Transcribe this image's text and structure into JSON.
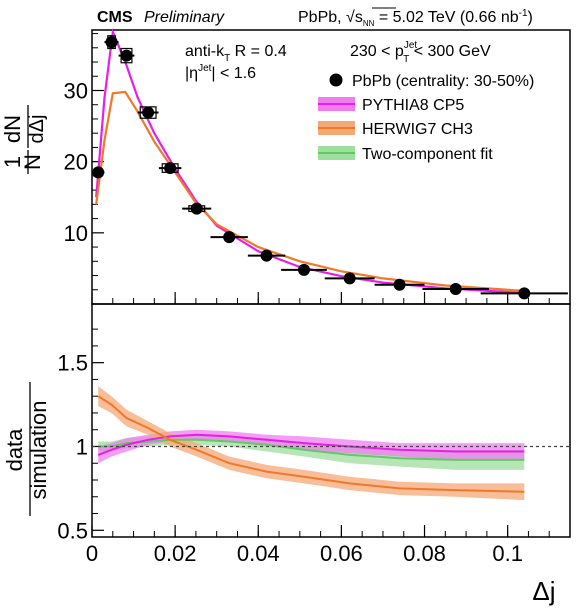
{
  "header": {
    "experiment": "CMS",
    "status": "Preliminary",
    "dataset_prefix": "PbPb, √",
    "sqrt_sub": "s",
    "sqrt_subsub": "NN",
    "dataset_suffix": " = 5.02 TeV (0.66 nb",
    "lumi_exp": "-1",
    "close": ")"
  },
  "annotations": {
    "jet_algo": "anti-k",
    "jet_algo_sub": "T",
    "jet_radius": " R = 0.4",
    "eta_pre": "|η",
    "eta_sup": "Jet",
    "eta_post": "| < 1.6",
    "pt_pre": "230 < p",
    "pt_sup": "Jet",
    "pt_sub": "T",
    "pt_post": " < 300 GeV"
  },
  "legend": {
    "data": "PbPb (centrality: 30-50%)",
    "pythia": "PYTHIA8 CP5",
    "herwig": "HERWIG7 CH3",
    "fit": "Two-component fit"
  },
  "colors": {
    "data": "#000000",
    "pythia": "#e61ee6",
    "pythia_band": "#f07cf0",
    "herwig": "#f07828",
    "herwig_band": "#f5a878",
    "fit": "#64c864",
    "fit_band": "#9ede9e"
  },
  "chart_data": [
    {
      "type": "line",
      "panel": "top",
      "ylabel_num": "1",
      "ylabel_den": "N",
      "ylabel_num2": "dN",
      "ylabel_den2": "dΔj",
      "xlim": [
        0,
        0.115
      ],
      "ylim": [
        0,
        38.5
      ],
      "yticks": [
        10,
        20,
        30
      ],
      "data_points": {
        "name": "PbPb (centrality: 30-50%)",
        "x": [
          0.0015,
          0.0047,
          0.0083,
          0.0135,
          0.0188,
          0.0252,
          0.033,
          0.042,
          0.051,
          0.062,
          0.074,
          0.0875,
          0.104
        ],
        "xerr": [
          0.0015,
          0.0017,
          0.0019,
          0.0025,
          0.0027,
          0.0035,
          0.0045,
          0.0045,
          0.0055,
          0.006,
          0.006,
          0.008,
          0.0105
        ],
        "y": [
          18.5,
          36.8,
          34.9,
          26.9,
          19.1,
          13.4,
          9.4,
          6.8,
          4.8,
          3.6,
          2.7,
          2.1,
          1.5
        ],
        "box_xw": [
          0.0,
          0.0009,
          0.0013,
          0.0019,
          0.0019,
          0.0019,
          0.0,
          0.0,
          0.0,
          0.0,
          0.0,
          0.0,
          0.0
        ],
        "box_yh": [
          0.0,
          0.9,
          1.0,
          0.8,
          0.6,
          0.4,
          0.0,
          0.0,
          0.0,
          0.0,
          0.0,
          0.0,
          0.0
        ]
      },
      "series": [
        {
          "name": "PYTHIA8 CP5",
          "x": [
            0.001,
            0.003,
            0.005,
            0.008,
            0.011,
            0.015,
            0.02,
            0.025,
            0.03,
            0.04,
            0.05,
            0.06,
            0.07,
            0.085,
            0.105
          ],
          "y": [
            15.0,
            29.0,
            38.2,
            34.0,
            29.0,
            24.0,
            19.0,
            14.5,
            11.0,
            7.4,
            5.2,
            3.9,
            3.0,
            2.2,
            1.5
          ]
        },
        {
          "name": "HERWIG7 CH3",
          "x": [
            0.001,
            0.003,
            0.005,
            0.008,
            0.011,
            0.015,
            0.02,
            0.025,
            0.03,
            0.04,
            0.05,
            0.06,
            0.07,
            0.085,
            0.105
          ],
          "y": [
            14.0,
            23.0,
            29.6,
            29.8,
            27.0,
            22.8,
            18.5,
            14.2,
            11.2,
            8.0,
            6.0,
            4.6,
            3.6,
            2.6,
            1.8
          ]
        }
      ]
    },
    {
      "type": "line",
      "panel": "bottom",
      "ylabel_num": "data",
      "ylabel_den": "simulation",
      "xlabel": "Δj",
      "xlim": [
        0,
        0.115
      ],
      "ylim": [
        0.46,
        1.85
      ],
      "yticks": [
        0.5,
        1,
        1.5
      ],
      "xticks": [
        0,
        0.02,
        0.04,
        0.06,
        0.08,
        0.1
      ],
      "xtick_labels": [
        "0",
        "0.02",
        "0.04",
        "0.06",
        "0.08",
        "0.1"
      ],
      "reference_line": 1,
      "series": [
        {
          "name": "PYTHIA8 CP5",
          "x": [
            0.0015,
            0.0047,
            0.0083,
            0.0135,
            0.0188,
            0.0252,
            0.033,
            0.042,
            0.051,
            0.062,
            0.074,
            0.0875,
            0.104
          ],
          "y": [
            0.95,
            0.98,
            1.01,
            1.04,
            1.06,
            1.07,
            1.06,
            1.04,
            1.02,
            1.0,
            0.98,
            0.97,
            0.97
          ],
          "err": [
            0.05,
            0.04,
            0.04,
            0.03,
            0.03,
            0.03,
            0.03,
            0.03,
            0.04,
            0.04,
            0.04,
            0.05,
            0.05
          ]
        },
        {
          "name": "HERWIG7 CH3",
          "x": [
            0.0015,
            0.0047,
            0.0083,
            0.0135,
            0.0188,
            0.0252,
            0.033,
            0.042,
            0.051,
            0.062,
            0.074,
            0.0875,
            0.104
          ],
          "y": [
            1.3,
            1.25,
            1.17,
            1.11,
            1.04,
            0.98,
            0.9,
            0.85,
            0.82,
            0.78,
            0.75,
            0.74,
            0.73
          ],
          "err": [
            0.06,
            0.05,
            0.05,
            0.04,
            0.04,
            0.04,
            0.04,
            0.04,
            0.04,
            0.04,
            0.04,
            0.04,
            0.05
          ]
        },
        {
          "name": "Two-component fit",
          "x": [
            0.0015,
            0.0047,
            0.0083,
            0.0135,
            0.0188,
            0.0252,
            0.033,
            0.042,
            0.051,
            0.062,
            0.074,
            0.0875,
            0.104
          ],
          "y": [
            1.0,
            1.0,
            1.02,
            1.03,
            1.04,
            1.04,
            1.03,
            1.01,
            0.98,
            0.95,
            0.93,
            0.92,
            0.92
          ],
          "err": [
            0.03,
            0.03,
            0.03,
            0.03,
            0.03,
            0.03,
            0.03,
            0.04,
            0.04,
            0.05,
            0.05,
            0.06,
            0.06
          ]
        }
      ]
    }
  ]
}
